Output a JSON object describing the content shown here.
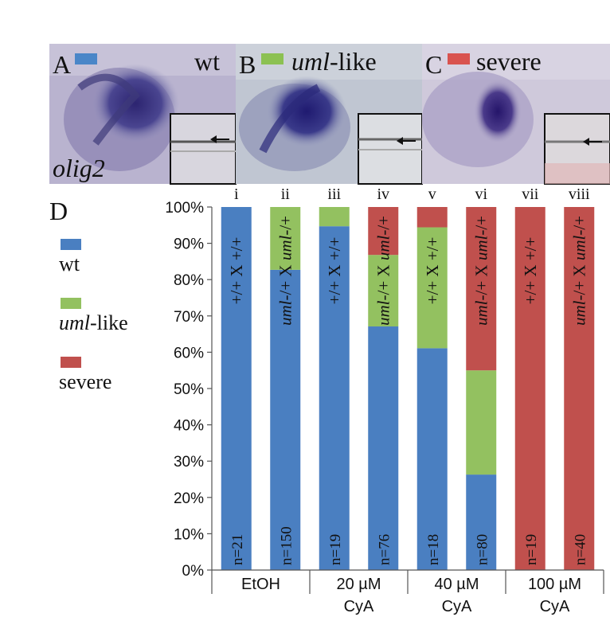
{
  "panels": [
    {
      "letter": "A",
      "label_pre": "",
      "label_it": "",
      "label_post": "wt",
      "swatch": "#4a86c8"
    },
    {
      "letter": "B",
      "label_pre": "",
      "label_it": "uml",
      "label_post": "-like",
      "swatch": "#8cc152"
    },
    {
      "letter": "C",
      "label_pre": "",
      "label_it": "",
      "label_post": "severe",
      "swatch": "#d9534f"
    }
  ],
  "gene_label": "olig2",
  "chart_letter": "D",
  "chart_data": {
    "type": "bar",
    "stacked": true,
    "percent": true,
    "ylim": [
      0,
      100
    ],
    "yticks": [
      "0%",
      "10%",
      "20%",
      "30%",
      "40%",
      "50%",
      "60%",
      "70%",
      "80%",
      "90%",
      "100%"
    ],
    "categories": [
      "i",
      "ii",
      "iii",
      "iv",
      "v",
      "vi",
      "vii",
      "viii"
    ],
    "crosses": [
      {
        "pre": "+/+ X +/+",
        "it1": "",
        "mid": "",
        "it2": "",
        "post": ""
      },
      {
        "pre": "",
        "it1": "uml",
        "mid": "-/+ X ",
        "it2": "uml",
        "post": "-/+"
      },
      {
        "pre": "+/+ X +/+",
        "it1": "",
        "mid": "",
        "it2": "",
        "post": ""
      },
      {
        "pre": "",
        "it1": "uml",
        "mid": "-/+ X ",
        "it2": "uml",
        "post": "-/+"
      },
      {
        "pre": "+/+ X +/+",
        "it1": "",
        "mid": "",
        "it2": "",
        "post": ""
      },
      {
        "pre": "",
        "it1": "uml",
        "mid": "-/+ X ",
        "it2": "uml",
        "post": "-/+"
      },
      {
        "pre": "+/+ X +/+",
        "it1": "",
        "mid": "",
        "it2": "",
        "post": ""
      },
      {
        "pre": "",
        "it1": "uml",
        "mid": "-/+ X ",
        "it2": "uml",
        "post": "-/+"
      }
    ],
    "n_labels": [
      "n=21",
      "n=150",
      "n=19",
      "n=76",
      "n=18",
      "n=80",
      "n=19",
      "n=40"
    ],
    "groups": [
      {
        "line1": "EtOH",
        "line2": ""
      },
      {
        "line1": "20 µM",
        "line2": "CyA"
      },
      {
        "line1": "40 µM",
        "line2": "CyA"
      },
      {
        "line1": "100 µM",
        "line2": "CyA"
      }
    ],
    "series": [
      {
        "name": "wt",
        "color": "#4a7fc1",
        "values": [
          100,
          82.7,
          94.7,
          67.1,
          61.1,
          26.3,
          0,
          0
        ]
      },
      {
        "name": "uml-like",
        "color": "#93c160",
        "values": [
          0,
          17.3,
          5.3,
          19.7,
          33.3,
          28.7,
          0,
          0
        ]
      },
      {
        "name": "severe",
        "color": "#c0504d",
        "values": [
          0,
          0,
          0,
          13.2,
          5.6,
          45.0,
          100,
          100
        ]
      }
    ],
    "legend": [
      {
        "pre": "",
        "it": "",
        "post": "wt",
        "color": "#4a7fc1"
      },
      {
        "pre": "",
        "it": "uml",
        "post": "-like",
        "color": "#93c160"
      },
      {
        "pre": "",
        "it": "",
        "post": "severe",
        "color": "#c0504d"
      }
    ],
    "legend_position": "left",
    "grid": false
  }
}
